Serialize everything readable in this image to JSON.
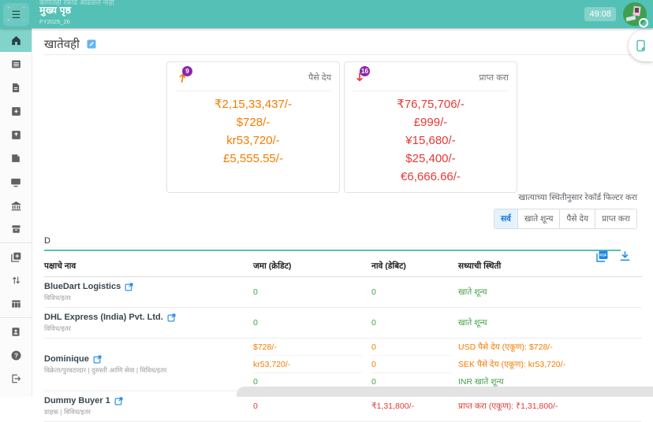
{
  "topbar": {
    "toast": "कोणतेही रेकॉर्ड आढळले नाही",
    "title": "मुख्य पृष्ठ",
    "fiscal_year": "FY2025_26",
    "timer": "49:08"
  },
  "page": {
    "title": "खातेवही"
  },
  "sidebar": {
    "items": [
      {
        "icon": "home-icon",
        "active": true
      },
      {
        "icon": "ledger-icon"
      },
      {
        "icon": "invoice-icon"
      },
      {
        "icon": "sale-tray-icon"
      },
      {
        "icon": "purchase-tray-icon"
      },
      {
        "icon": "note-icon"
      },
      {
        "icon": "monitor-icon"
      },
      {
        "icon": "bank-icon"
      },
      {
        "icon": "archive-icon"
      },
      {
        "divider": true
      },
      {
        "icon": "copy-add-icon"
      },
      {
        "icon": "transfer-icon"
      },
      {
        "icon": "columns-icon"
      },
      {
        "divider": true
      },
      {
        "icon": "contact-card-icon"
      },
      {
        "icon": "help-icon"
      },
      {
        "icon": "logout-icon"
      }
    ]
  },
  "cards": {
    "payable": {
      "label": "पैसे देय",
      "badge": "9",
      "tone": "orange",
      "values": [
        "₹2,15,33,437/-",
        "$728/-",
        "kr53,720/-",
        "£5,555.55/-"
      ]
    },
    "receivable": {
      "label": "प्राप्त करा",
      "badge": "16",
      "tone": "red",
      "values": [
        "₹76,75,706/-",
        "£999/-",
        "¥15,680/-",
        "$25,400/-",
        "€6,666.66/-"
      ]
    }
  },
  "filter": {
    "label": "खात्याच्या स्थितीनुसार रेकॉर्ड फिल्टर करा",
    "options": [
      "सर्व",
      "खाते शून्य",
      "पैसे देय",
      "प्राप्त करा"
    ],
    "selected": "सर्व"
  },
  "search": {
    "value": "D"
  },
  "table": {
    "headers": [
      "पक्षाचे नाव",
      "जमा (क्रेडिट)",
      "नावे (डेबिट)",
      "सध्याची स्थिती"
    ],
    "rows": [
      {
        "name": "BlueDart Logistics",
        "tags": "विविध/इतर",
        "entries": [
          {
            "credit": "0",
            "debit": "0",
            "status": "खाते शून्य",
            "tone": "green"
          }
        ]
      },
      {
        "name": "DHL Express (India) Pvt. Ltd.",
        "tags": "विविध/इतर",
        "entries": [
          {
            "credit": "0",
            "debit": "0",
            "status": "खाते शून्य",
            "tone": "green"
          }
        ]
      },
      {
        "name": "Dominique",
        "tags": "विक्रेता/पुरवठादार | दुरुस्ती आणि सेवा | विविध/इतर",
        "entries": [
          {
            "credit": "$728/-",
            "debit": "0",
            "status": "USD पैसे देय (एकूण): $728/-",
            "tone": "orange"
          },
          {
            "credit": "kr53,720/-",
            "debit": "0",
            "status": "SEK पैसे देय (एकूण): kr53,720/-",
            "tone": "orange"
          },
          {
            "credit": "0",
            "debit": "0",
            "status": "INR खाते शून्य",
            "tone": "green"
          }
        ]
      },
      {
        "name": "Dummy Buyer 1",
        "tags": "ग्राहक | विविध/इतर",
        "entries": [
          {
            "credit": "0",
            "debit": "₹1,31,800/-",
            "status": "प्राप्त करा (एकूण): ₹1,31,800/-",
            "tone": "red"
          }
        ]
      }
    ]
  },
  "colors": {
    "accent_teal": "#55c1b6",
    "active_sidebar": "#82d3ca",
    "payable_orange": "#f57c00",
    "receivable_red": "#e53935",
    "zero_green": "#43a047",
    "link_blue": "#1e88e5",
    "badge_purple": "#8e24aa",
    "bank_purple": "#9c27b0",
    "filter_selected_bg": "#e3f2fd",
    "filter_selected_text": "#1976d2"
  }
}
